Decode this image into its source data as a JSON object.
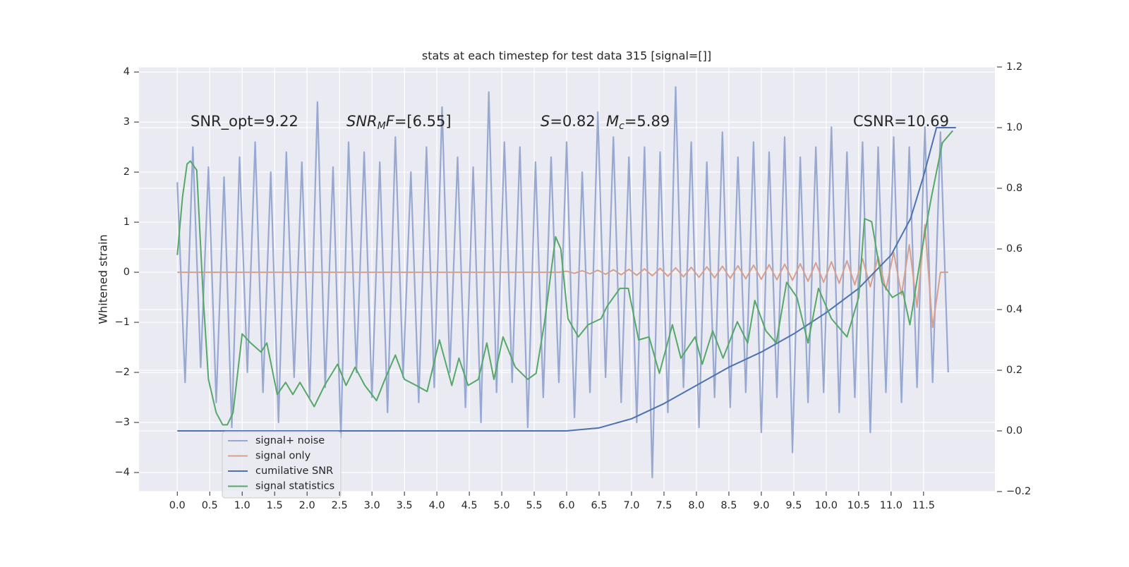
{
  "chart_data": {
    "type": "line",
    "title": "stats at each timestep for test data 315 [signal=[]]",
    "ylabel": "Whitened strain",
    "grid": true,
    "legend": "lower left",
    "xlim": [
      -0.59,
      12.6
    ],
    "ylim": [
      -4.38,
      4.1
    ],
    "y2lim": [
      -0.2,
      1.2
    ],
    "xticks": [
      {
        "value": 0,
        "label": "0.0"
      },
      0.5,
      {
        "value": 1,
        "label": "1.0"
      },
      1.5,
      {
        "value": 2,
        "label": "2.0"
      },
      2.5,
      {
        "value": 3,
        "label": "3.0"
      },
      3.5,
      {
        "value": 4,
        "label": "4.0"
      },
      4.5,
      {
        "value": 5,
        "label": "5.0"
      },
      5.5,
      {
        "value": 6,
        "label": "6.0"
      },
      6.5,
      {
        "value": 7,
        "label": "7.0"
      },
      7.5,
      {
        "value": 8,
        "label": "8.0"
      },
      8.5,
      {
        "value": 9,
        "label": "9.0"
      },
      9.5,
      {
        "value": 10,
        "label": "10.0"
      },
      10.5,
      {
        "value": 11,
        "label": "11.0"
      },
      11.5
    ],
    "yticks": [
      {
        "value": -4,
        "label": "−4"
      },
      {
        "value": -3,
        "label": "−3"
      },
      {
        "value": -2,
        "label": "−2"
      },
      {
        "value": -1,
        "label": "−1"
      },
      0,
      1,
      2,
      3,
      4
    ],
    "y2ticks": [
      {
        "value": -0.2,
        "label": "−0.2"
      },
      {
        "value": 0,
        "label": "0.0"
      },
      0.2,
      0.4,
      0.6,
      0.8,
      {
        "value": 1,
        "label": "1.0"
      },
      1.2
    ],
    "annotations": [
      [
        {
          "text": "SNR_opt=9.22",
          "style": "normal"
        }
      ],
      [
        {
          "text": "SNR",
          "style": "italic"
        },
        {
          "text": "M",
          "style": "sub"
        },
        {
          "text": "F",
          "style": "italic"
        },
        {
          "text": "=[6.55]",
          "style": "normal"
        }
      ],
      [
        {
          "text": "S",
          "style": "italic"
        },
        {
          "text": "=0.82",
          "style": "normal"
        }
      ],
      [
        {
          "text": "M",
          "style": "italic"
        },
        {
          "text": "c",
          "style": "sub"
        },
        {
          "text": "=5.89",
          "style": "normal"
        }
      ],
      [
        {
          "text": "CSNR=10.69",
          "style": "normal"
        }
      ]
    ],
    "series": [
      {
        "name": "signal+ noise",
        "color": "#97a8d1",
        "x": [
          0,
          0.12,
          0.24,
          0.36,
          0.48,
          0.6,
          0.72,
          0.84,
          0.96,
          1.08,
          1.2,
          1.32,
          1.44,
          1.56,
          1.68,
          1.8,
          1.92,
          2.04,
          2.16,
          2.28,
          2.4,
          2.52,
          2.64,
          2.76,
          2.88,
          3,
          3.12,
          3.24,
          3.36,
          3.48,
          3.6,
          3.72,
          3.84,
          3.96,
          4.08,
          4.2,
          4.32,
          4.44,
          4.56,
          4.68,
          4.8,
          4.92,
          5.04,
          5.16,
          5.28,
          5.4,
          5.52,
          5.64,
          5.76,
          5.88,
          6,
          6.12,
          6.24,
          6.36,
          6.48,
          6.6,
          6.72,
          6.84,
          6.96,
          7.08,
          7.2,
          7.32,
          7.44,
          7.56,
          7.68,
          7.8,
          7.92,
          8.04,
          8.16,
          8.28,
          8.4,
          8.52,
          8.64,
          8.76,
          8.88,
          9,
          9.12,
          9.24,
          9.36,
          9.48,
          9.6,
          9.72,
          9.84,
          9.96,
          10.08,
          10.2,
          10.32,
          10.44,
          10.56,
          10.68,
          10.8,
          10.92,
          11.04,
          11.16,
          11.28,
          11.4,
          11.52,
          11.64,
          11.76,
          11.88
        ],
        "values": [
          1.8,
          -2.2,
          2.5,
          -1.9,
          2.1,
          -2.6,
          1.9,
          -3.1,
          2.3,
          -2.0,
          2.6,
          -2.4,
          2.0,
          -3.0,
          2.4,
          -2.1,
          2.2,
          -2.5,
          3.4,
          -2.3,
          2.1,
          -3.3,
          2.6,
          -2.0,
          2.4,
          -2.5,
          2.2,
          -2.8,
          2.7,
          -2.1,
          2.0,
          -2.6,
          2.5,
          -2.3,
          3.3,
          -2.0,
          2.3,
          -2.7,
          2.1,
          -3.0,
          3.6,
          -2.4,
          2.6,
          -2.2,
          2.5,
          -3.1,
          2.2,
          -2.5,
          2.3,
          -2.2,
          2.6,
          -2.9,
          2.0,
          -2.4,
          3.2,
          -2.1,
          2.7,
          -2.6,
          2.3,
          -3.0,
          2.5,
          -4.1,
          2.4,
          -2.8,
          3.7,
          -2.3,
          2.6,
          -3.1,
          2.2,
          -2.5,
          2.8,
          -2.7,
          2.3,
          -2.4,
          2.6,
          -3.2,
          2.4,
          -2.5,
          2.7,
          -3.6,
          2.3,
          -2.6,
          2.5,
          -2.4,
          2.9,
          -2.8,
          2.4,
          -2.5,
          2.6,
          -3.2,
          2.5,
          -2.4,
          2.7,
          -2.6,
          2.5,
          -2.3,
          2.9,
          -2.2,
          2.8,
          -2.0
        ]
      },
      {
        "name": "signal only",
        "color": "#d6a08f",
        "x": [
          0,
          0.12,
          0.24,
          0.36,
          0.48,
          0.6,
          0.72,
          0.84,
          0.96,
          1.08,
          1.2,
          1.32,
          1.44,
          1.56,
          1.68,
          1.8,
          1.92,
          2.04,
          2.16,
          2.28,
          2.4,
          2.52,
          2.64,
          2.76,
          2.88,
          3,
          3.12,
          3.24,
          3.36,
          3.48,
          3.6,
          3.72,
          3.84,
          3.96,
          4.08,
          4.2,
          4.32,
          4.44,
          4.56,
          4.68,
          4.8,
          4.92,
          5.04,
          5.16,
          5.28,
          5.4,
          5.52,
          5.64,
          5.76,
          5.88,
          6,
          6.12,
          6.24,
          6.36,
          6.48,
          6.6,
          6.72,
          6.84,
          6.96,
          7.08,
          7.2,
          7.32,
          7.44,
          7.56,
          7.68,
          7.8,
          7.92,
          8.04,
          8.16,
          8.28,
          8.4,
          8.52,
          8.64,
          8.76,
          8.88,
          9,
          9.12,
          9.24,
          9.36,
          9.48,
          9.6,
          9.72,
          9.84,
          9.96,
          10.08,
          10.2,
          10.32,
          10.44,
          10.56,
          10.68,
          10.8,
          10.92,
          11.04,
          11.16,
          11.28,
          11.4,
          11.52,
          11.64,
          11.76,
          11.88
        ],
        "values": [
          0,
          0,
          0,
          0,
          0,
          0,
          0,
          0,
          0,
          0,
          0,
          0,
          0,
          0,
          0,
          0,
          0,
          0,
          0,
          0,
          0,
          0,
          0,
          0,
          0,
          0,
          0,
          0,
          0,
          0,
          0,
          0,
          0,
          0,
          0,
          0,
          0,
          0,
          0,
          0,
          0,
          0,
          0,
          0,
          0,
          0,
          0,
          0,
          0,
          0,
          0.02,
          -0.02,
          0.03,
          -0.03,
          0.04,
          -0.04,
          0.05,
          -0.05,
          0.06,
          -0.06,
          0.07,
          -0.07,
          0.08,
          -0.08,
          0.09,
          -0.09,
          0.1,
          -0.1,
          0.11,
          -0.11,
          0.12,
          -0.12,
          0.13,
          -0.13,
          0.14,
          -0.14,
          0.15,
          -0.15,
          0.16,
          -0.16,
          0.17,
          -0.18,
          0.19,
          -0.2,
          0.21,
          -0.22,
          0.23,
          -0.25,
          0.27,
          -0.29,
          0.31,
          -0.35,
          0.4,
          -0.45,
          0.55,
          -0.7,
          0.95,
          -1.1,
          0,
          0
        ]
      },
      {
        "name": "cumilative SNR",
        "color": "#4c72b0",
        "axis": "y2",
        "x": [
          0,
          1,
          2,
          3,
          4,
          5,
          6,
          6.5,
          7,
          7.5,
          8,
          8.5,
          9,
          9.5,
          10,
          10.5,
          11,
          11.3,
          11.5,
          11.7,
          12
        ],
        "values": [
          0,
          0,
          0,
          0,
          0,
          0,
          0,
          0.01,
          0.04,
          0.09,
          0.15,
          0.21,
          0.26,
          0.32,
          0.39,
          0.47,
          0.58,
          0.7,
          0.84,
          1.0,
          1.0
        ]
      },
      {
        "name": "signal statistics",
        "color": "#55a868",
        "axis": "y2",
        "x": [
          0,
          0.08,
          0.15,
          0.2,
          0.3,
          0.4,
          0.48,
          0.6,
          0.7,
          0.77,
          0.86,
          1.0,
          1.13,
          1.29,
          1.38,
          1.54,
          1.67,
          1.78,
          1.89,
          2.11,
          2.27,
          2.47,
          2.6,
          2.74,
          2.89,
          3.07,
          3.2,
          3.36,
          3.5,
          3.68,
          3.85,
          4.04,
          4.23,
          4.34,
          4.48,
          4.64,
          4.77,
          4.88,
          5.02,
          5.21,
          5.4,
          5.53,
          5.66,
          5.83,
          5.91,
          6.02,
          6.18,
          6.33,
          6.53,
          6.62,
          6.82,
          6.95,
          7.11,
          7.27,
          7.43,
          7.63,
          7.76,
          7.98,
          8.09,
          8.25,
          8.41,
          8.63,
          8.79,
          8.9,
          9.07,
          9.23,
          9.39,
          9.55,
          9.72,
          9.88,
          10.08,
          10.32,
          10.5,
          10.59,
          10.7,
          10.86,
          11.02,
          11.18,
          11.29,
          11.46,
          11.62,
          11.79,
          11.95
        ],
        "values": [
          0.58,
          0.77,
          0.88,
          0.89,
          0.86,
          0.44,
          0.17,
          0.06,
          0.02,
          0.02,
          0.06,
          0.32,
          0.29,
          0.26,
          0.29,
          0.12,
          0.16,
          0.12,
          0.16,
          0.08,
          0.15,
          0.22,
          0.15,
          0.21,
          0.15,
          0.1,
          0.17,
          0.25,
          0.17,
          0.15,
          0.13,
          0.3,
          0.15,
          0.24,
          0.15,
          0.17,
          0.29,
          0.17,
          0.31,
          0.21,
          0.17,
          0.19,
          0.36,
          0.64,
          0.6,
          0.37,
          0.31,
          0.35,
          0.37,
          0.41,
          0.47,
          0.47,
          0.3,
          0.31,
          0.19,
          0.35,
          0.24,
          0.31,
          0.22,
          0.33,
          0.24,
          0.36,
          0.29,
          0.43,
          0.33,
          0.29,
          0.49,
          0.44,
          0.29,
          0.47,
          0.37,
          0.31,
          0.44,
          0.7,
          0.69,
          0.49,
          0.44,
          0.46,
          0.35,
          0.58,
          0.77,
          0.95,
          0.99
        ]
      }
    ]
  }
}
